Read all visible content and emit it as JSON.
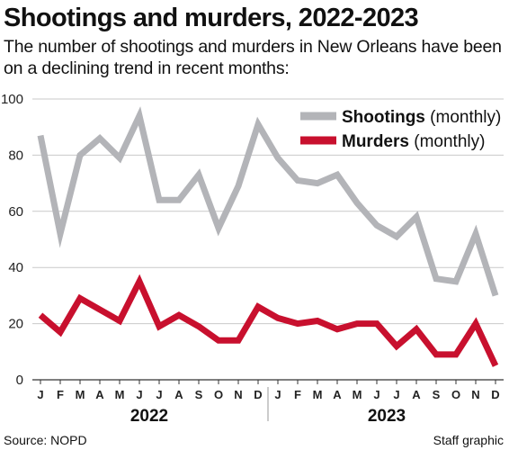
{
  "header": {
    "title": "Shootings and murders, 2022-2023",
    "subtitle": "The number of shootings and murders in New Orleans have been on a declining trend in recent months:"
  },
  "footer": {
    "source": "Source: NOPD",
    "credit": "Staff graphic"
  },
  "colors": {
    "shootings": "#b3b4b8",
    "murders": "#c8102e",
    "grid": "#c9c9c9",
    "axis": "#333333"
  },
  "chart_data": {
    "type": "line",
    "title": "Shootings and murders, 2022-2023",
    "xlabel": "",
    "ylabel": "",
    "ylim": [
      0,
      100
    ],
    "yticks": [
      0,
      20,
      40,
      60,
      80,
      100
    ],
    "grid": true,
    "legend_position": "top-right",
    "categories": [
      "J",
      "F",
      "M",
      "A",
      "M",
      "J",
      "J",
      "A",
      "S",
      "O",
      "N",
      "D",
      "J",
      "F",
      "M",
      "A",
      "M",
      "J",
      "J",
      "A",
      "S",
      "O",
      "N",
      "D"
    ],
    "years": [
      {
        "label": "2022",
        "start": 0,
        "end": 11
      },
      {
        "label": "2023",
        "start": 12,
        "end": 23
      }
    ],
    "series": [
      {
        "name": "Shootings",
        "legend_qualifier": "(monthly)",
        "color": "#b3b4b8",
        "values": [
          87,
          52,
          80,
          86,
          79,
          94,
          64,
          64,
          73,
          54,
          69,
          91,
          79,
          71,
          70,
          73,
          63,
          55,
          51,
          58,
          36,
          35,
          52,
          30
        ]
      },
      {
        "name": "Murders",
        "legend_qualifier": "(monthly)",
        "color": "#c8102e",
        "values": [
          23,
          17,
          29,
          25,
          21,
          35,
          19,
          23,
          19,
          14,
          14,
          26,
          22,
          20,
          21,
          18,
          20,
          20,
          12,
          18,
          9,
          9,
          20,
          5
        ]
      }
    ]
  }
}
